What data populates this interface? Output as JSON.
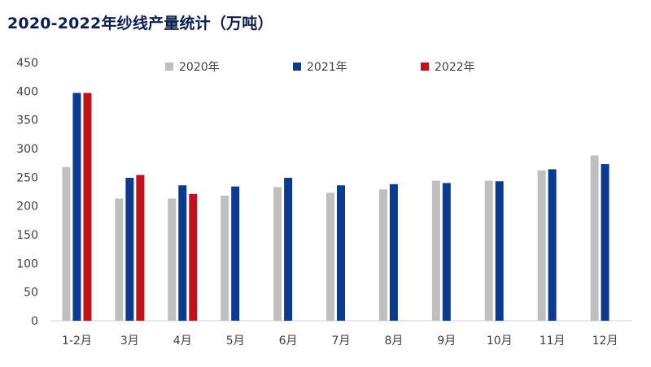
{
  "title": "2020-2022年纱线产量统计（万吨）",
  "chart_data": {
    "type": "bar",
    "title": "2020-2022年纱线产量统计（万吨）",
    "xlabel": "",
    "ylabel": "",
    "ylim": [
      0,
      450
    ],
    "yticks": [
      0,
      50,
      100,
      150,
      200,
      250,
      300,
      350,
      400,
      450
    ],
    "grid": false,
    "legend_position": "top",
    "categories": [
      "1-2月",
      "3月",
      "4月",
      "5月",
      "6月",
      "7月",
      "8月",
      "9月",
      "10月",
      "11月",
      "12月"
    ],
    "series": [
      {
        "name": "2020年",
        "color": "#bfbfbf",
        "values": [
          268,
          213,
          213,
          218,
          233,
          223,
          229,
          244,
          244,
          262,
          288
        ]
      },
      {
        "name": "2021年",
        "color": "#0b3a8f",
        "values": [
          397,
          249,
          236,
          234,
          249,
          236,
          238,
          240,
          243,
          264,
          273
        ]
      },
      {
        "name": "2022年",
        "color": "#c0121a",
        "values": [
          397,
          254,
          221,
          null,
          null,
          null,
          null,
          null,
          null,
          null,
          null
        ]
      }
    ]
  }
}
